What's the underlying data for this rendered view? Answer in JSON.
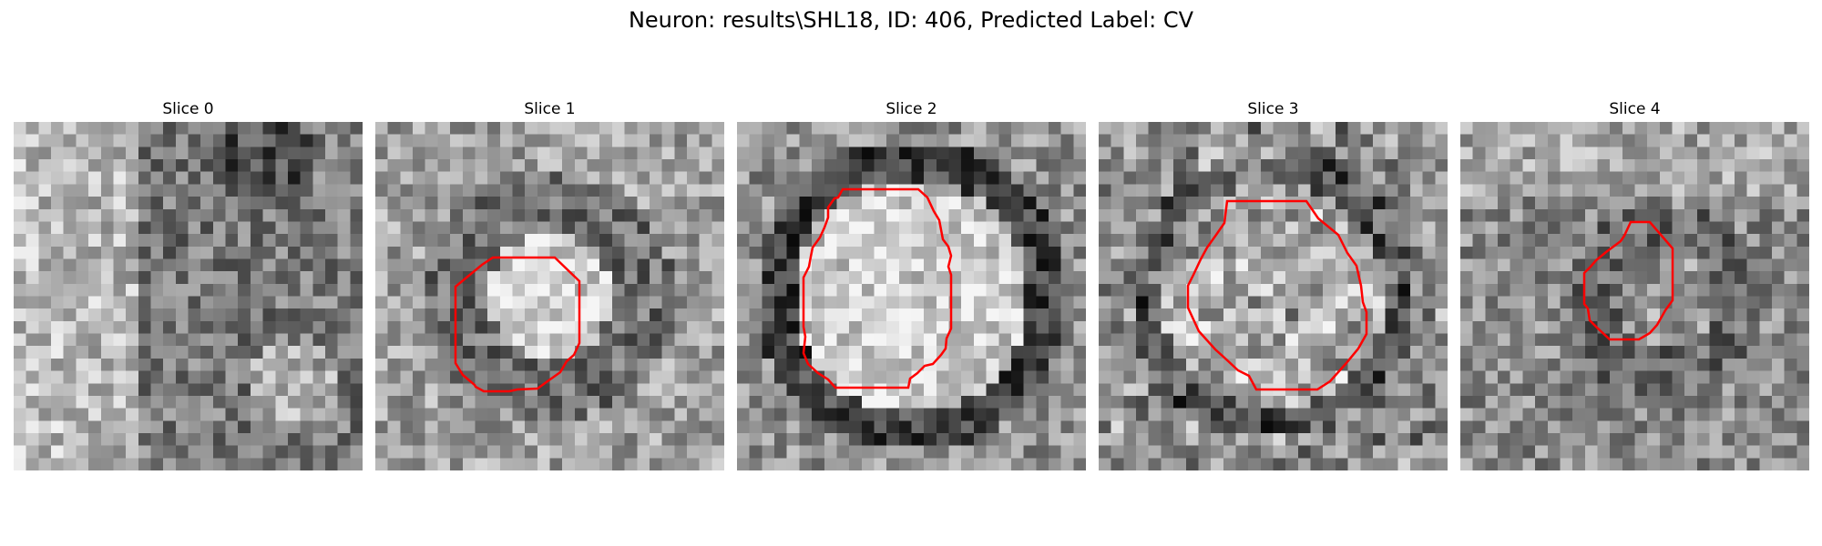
{
  "figure": {
    "title": "Neuron: results\\SHL18, ID: 406, Predicted Label: CV"
  },
  "panels": [
    {
      "title": "Slice 0",
      "has_contour": false
    },
    {
      "title": "Slice 1",
      "has_contour": true
    },
    {
      "title": "Slice 2",
      "has_contour": true
    },
    {
      "title": "Slice 3",
      "has_contour": true
    },
    {
      "title": "Slice 4",
      "has_contour": true
    }
  ],
  "colors": {
    "contour": "#ff0000",
    "background": "#ffffff"
  },
  "colormap": "gray"
}
